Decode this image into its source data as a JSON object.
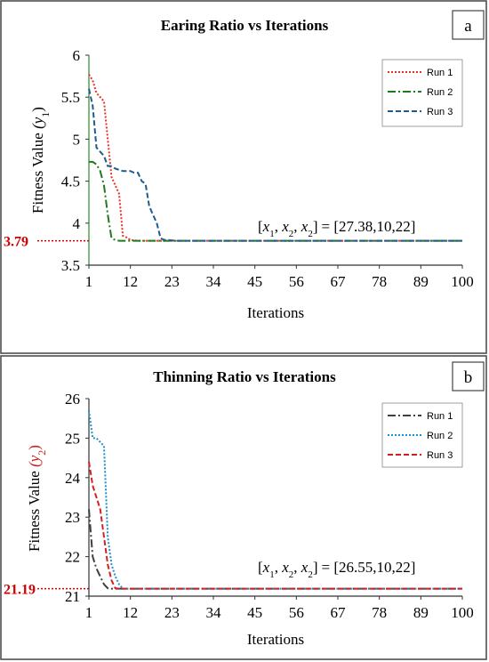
{
  "chart_data": [
    {
      "type": "line",
      "panel": "a",
      "title": "Earing Ratio vs Iterations",
      "xlabel": "Iterations",
      "ylabel": "Fitness Value",
      "ylabel_symbol": "(y",
      "ylabel_sub": "1",
      "ylabel_close": ")",
      "xlim": [
        1,
        100
      ],
      "ylim": [
        3.5,
        6
      ],
      "xticks": [
        1,
        12,
        23,
        34,
        45,
        56,
        67,
        78,
        89,
        100
      ],
      "yticks": [
        "3.5",
        "4",
        "4.5",
        "5",
        "5.5",
        "6"
      ],
      "yticks_values": [
        3.5,
        4,
        4.5,
        5,
        5.5,
        6
      ],
      "marker_value": 3.79,
      "marker_label": "3.79",
      "annotation": "[x₁, x₂, x₂] = [27.38,10,22]",
      "annotation_text": "= [27.38,10,22]",
      "annotation_vars": "[x1, x2, x2]",
      "legend_position": "top-right",
      "series": [
        {
          "name": "Run 1",
          "color": "#e8302a",
          "dash": "dotted",
          "x": [
            1,
            2,
            3,
            4,
            5,
            6,
            7,
            8,
            9,
            10,
            11,
            12,
            14,
            100
          ],
          "y": [
            5.77,
            5.7,
            5.55,
            5.5,
            5.45,
            5.0,
            4.55,
            4.45,
            4.35,
            3.85,
            3.83,
            3.8,
            3.79,
            3.79
          ]
        },
        {
          "name": "Run 2",
          "color": "#1f7a1f",
          "dash": "dashdot",
          "x": [
            1,
            2,
            3,
            4,
            5,
            6,
            7,
            8,
            9,
            100
          ],
          "y": [
            4.73,
            4.73,
            4.7,
            4.62,
            4.45,
            4.1,
            3.82,
            3.8,
            3.79,
            3.79
          ]
        },
        {
          "name": "Run 3",
          "color": "#1f5c8c",
          "dash": "dashed",
          "x": [
            1,
            2,
            3,
            4,
            5,
            6,
            7,
            8,
            10,
            12,
            13,
            14,
            15,
            16,
            17,
            18,
            19,
            20,
            21,
            22,
            24,
            100
          ],
          "y": [
            5.6,
            5.4,
            4.9,
            4.85,
            4.8,
            4.68,
            4.68,
            4.65,
            4.62,
            4.62,
            4.6,
            4.6,
            4.5,
            4.47,
            4.2,
            4.1,
            4.0,
            3.82,
            3.8,
            3.8,
            3.79,
            3.79
          ]
        }
      ]
    },
    {
      "type": "line",
      "panel": "b",
      "title": "Thinning Ratio vs Iterations",
      "xlabel": "Iterations",
      "ylabel": "Fitness Value",
      "ylabel_symbol": "(y",
      "ylabel_sub": "2",
      "ylabel_close": ")",
      "xlim": [
        1,
        100
      ],
      "ylim": [
        21,
        26
      ],
      "xticks": [
        1,
        12,
        23,
        34,
        45,
        56,
        67,
        78,
        89,
        100
      ],
      "yticks": [
        "21",
        "22",
        "23",
        "24",
        "25",
        "26"
      ],
      "yticks_values": [
        21,
        22,
        23,
        24,
        25,
        26
      ],
      "marker_value": 21.19,
      "marker_label": "21.19",
      "annotation_text": "= [26.55,10,22]",
      "annotation_vars": "[x1, x2, x2]",
      "legend_position": "top-right",
      "series": [
        {
          "name": "Run 1",
          "color": "#404040",
          "dash": "dashdot",
          "x": [
            1,
            2,
            3,
            4,
            5,
            6,
            7,
            100
          ],
          "y": [
            23.2,
            22.0,
            21.7,
            21.5,
            21.3,
            21.2,
            21.19,
            21.19
          ]
        },
        {
          "name": "Run 2",
          "color": "#1f8fd0",
          "dash": "dotted",
          "x": [
            1,
            2,
            3,
            4,
            5,
            6,
            7,
            8,
            9,
            10,
            100
          ],
          "y": [
            25.7,
            25.0,
            25.0,
            24.9,
            24.8,
            22.5,
            21.8,
            21.5,
            21.3,
            21.19,
            21.19
          ]
        },
        {
          "name": "Run 3",
          "color": "#d62020",
          "dash": "dashed",
          "x": [
            1,
            2,
            3,
            4,
            5,
            6,
            7,
            8,
            9,
            100
          ],
          "y": [
            24.4,
            23.8,
            23.5,
            23.2,
            22.5,
            21.8,
            21.4,
            21.2,
            21.19,
            21.19
          ]
        }
      ]
    }
  ]
}
